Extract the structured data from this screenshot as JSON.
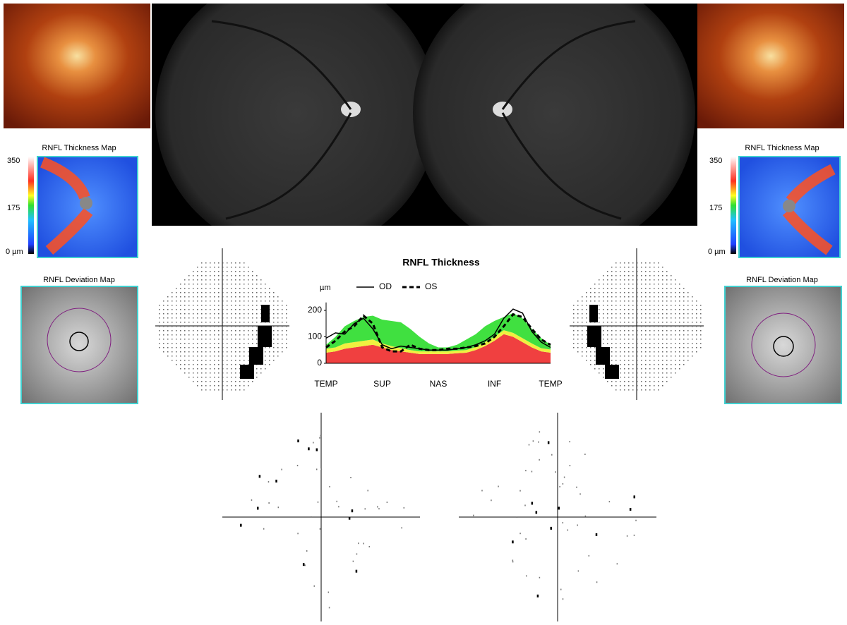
{
  "left_eye": {
    "thickness_map": {
      "title": "RNFL Thickness Map",
      "scale_labels": [
        "350",
        "175",
        "0 µm"
      ]
    },
    "deviation_map": {
      "title": "RNFL Deviation Map"
    }
  },
  "right_eye": {
    "thickness_map": {
      "title": "RNFL Thickness Map",
      "scale_labels": [
        "350",
        "175",
        "0 µm"
      ]
    },
    "deviation_map": {
      "title": "RNFL Deviation Map"
    }
  },
  "chart_data": {
    "type": "line",
    "title": "RNFL Thickness",
    "y_label": "µm",
    "categories": [
      "TEMP",
      null,
      null,
      null,
      null,
      null,
      "SUP",
      null,
      null,
      null,
      null,
      null,
      "NAS",
      null,
      null,
      null,
      null,
      null,
      "INF",
      null,
      null,
      null,
      null,
      null,
      "TEMP"
    ],
    "ylim": [
      0,
      230
    ],
    "yticks": [
      0,
      100,
      200
    ],
    "bands": [
      {
        "color": "#f04040",
        "values": [
          40,
          45,
          55,
          60,
          65,
          70,
          60,
          50,
          45,
          40,
          35,
          35,
          35,
          35,
          38,
          40,
          50,
          65,
          85,
          110,
          100,
          80,
          60,
          45,
          40
        ]
      },
      {
        "color": "#f0f040",
        "values": [
          15,
          15,
          20,
          20,
          20,
          20,
          15,
          15,
          12,
          10,
          10,
          10,
          10,
          10,
          10,
          10,
          12,
          15,
          15,
          15,
          15,
          15,
          15,
          12,
          12
        ]
      },
      {
        "color": "#40e040",
        "values": [
          15,
          40,
          65,
          80,
          90,
          90,
          90,
          95,
          98,
          80,
          55,
          30,
          15,
          15,
          22,
          40,
          48,
          60,
          60,
          50,
          75,
          75,
          55,
          38,
          18
        ]
      }
    ],
    "series": [
      {
        "name": "OD",
        "color": "#000000",
        "dash": false,
        "values": [
          95,
          115,
          110,
          150,
          170,
          130,
          70,
          55,
          65,
          60,
          55,
          50,
          50,
          50,
          55,
          60,
          70,
          85,
          110,
          170,
          205,
          190,
          120,
          80,
          60
        ]
      },
      {
        "name": "OS",
        "color": "#000000",
        "dash": true,
        "values": [
          60,
          85,
          120,
          140,
          180,
          150,
          60,
          45,
          45,
          70,
          55,
          50,
          50,
          55,
          55,
          60,
          65,
          75,
          100,
          140,
          185,
          175,
          130,
          90,
          70
        ]
      }
    ]
  }
}
